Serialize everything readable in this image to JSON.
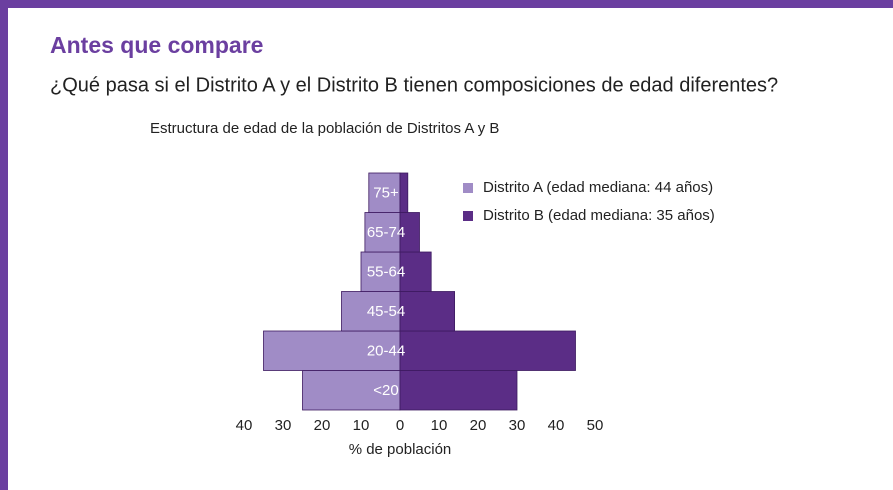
{
  "header": {
    "title": "Antes que compare",
    "subtitle": "¿Qué pasa si el Distrito A y el Distrito B tienen composiciones de edad diferentes?"
  },
  "chart_data": {
    "type": "pyramid",
    "title": "Estructura de edad de la población de Distritos A y B",
    "x_label": "% de población",
    "categories": [
      "<20",
      "20-44",
      "45-54",
      "55-64",
      "65-74",
      "75+"
    ],
    "series": [
      {
        "name": "Distrito A (edad mediana: 44 años)",
        "color": "#a08cc6",
        "values": [
          25,
          35,
          15,
          10,
          9,
          8
        ]
      },
      {
        "name": "Distrito B (edad mediana: 35 años)",
        "color": "#5b2d86",
        "values": [
          30,
          45,
          14,
          8,
          5,
          2
        ]
      }
    ],
    "xlim": [
      -40,
      50
    ],
    "xticks": [
      {
        "value": -40,
        "label": "40"
      },
      {
        "value": -30,
        "label": "30"
      },
      {
        "value": -20,
        "label": "20"
      },
      {
        "value": -10,
        "label": "10"
      },
      0,
      10,
      20,
      30,
      40,
      50
    ],
    "legend": "upper right"
  }
}
